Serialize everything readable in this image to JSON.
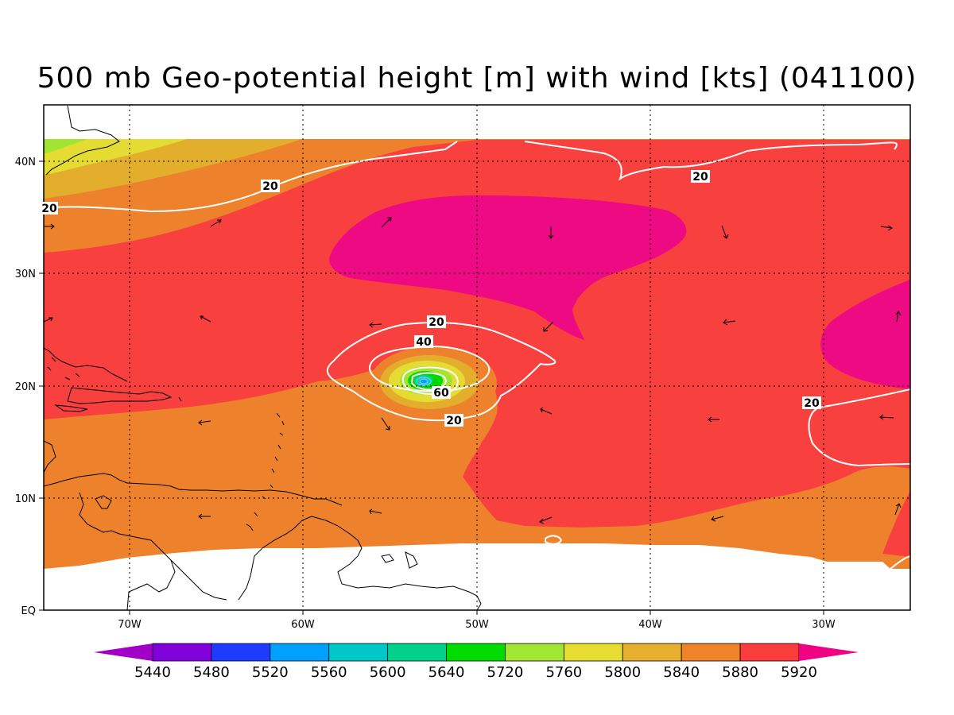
{
  "title": "500 mb Geo-potential height [m] with wind [kts] (041100)",
  "lon_ticks": [
    "70W",
    "60W",
    "50W",
    "40W",
    "30W"
  ],
  "lat_ticks": [
    "EQ",
    "10N",
    "20N",
    "30N",
    "40N"
  ],
  "contour_labels": [
    "20",
    "20",
    "20",
    "20",
    "40",
    "60",
    "20",
    "20"
  ],
  "colorbar": {
    "values": [
      "5440",
      "5480",
      "5520",
      "5560",
      "5600",
      "5640",
      "5720",
      "5760",
      "5800",
      "5840",
      "5880",
      "5920"
    ],
    "colors": [
      "#a000c8",
      "#8200dc",
      "#1e3cff",
      "#00a0ff",
      "#00c8c8",
      "#00d28c",
      "#00dc00",
      "#a0e632",
      "#e6dc32",
      "#e6af2d",
      "#f08228",
      "#fa3c3c",
      "#f00082"
    ]
  },
  "colors": {
    "c5920": "#ee0a82",
    "c5880": "#f8403f",
    "c5840": "#ee822c",
    "c5800": "#e4ae2d",
    "c5760": "#e5dc33",
    "c5720": "#a1e533",
    "c5640": "#00d800",
    "contour": "#ffffff"
  }
}
